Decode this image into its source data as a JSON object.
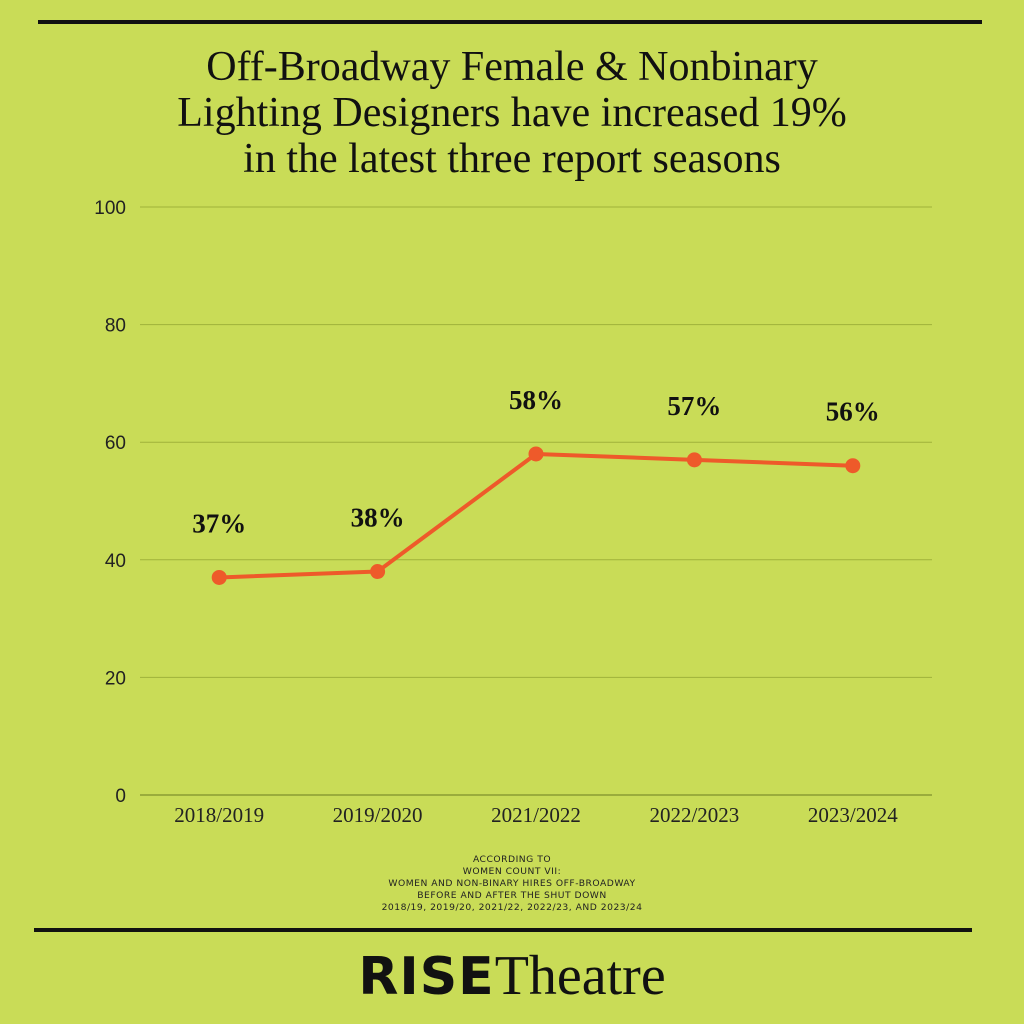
{
  "title_lines": [
    "Off-Broadway Female & Nonbinary",
    "Lighting Designers have increased 19%",
    "in the latest three report seasons"
  ],
  "chart_data": {
    "type": "line",
    "categories": [
      "2018/2019",
      "2019/2020",
      "2021/2022",
      "2022/2023",
      "2023/2024"
    ],
    "values": [
      37,
      38,
      58,
      57,
      56
    ],
    "data_labels": [
      "37%",
      "38%",
      "58%",
      "57%",
      "56%"
    ],
    "ylim": [
      0,
      100
    ],
    "yticks": [
      0,
      20,
      40,
      60,
      80,
      100
    ],
    "grid": true,
    "line_color": "#ee5a2a"
  },
  "footnote_lines": [
    "ACCORDING TO",
    "WOMEN COUNT VII:",
    "WOMEN AND NON-BINARY HIRES OFF-BROADWAY",
    "BEFORE AND AFTER THE SHUT DOWN",
    "2018/19, 2019/20, 2021/22, 2022/23, AND 2023/24"
  ],
  "brand": {
    "bold": "RISE",
    "regular": "Theatre"
  },
  "colors": {
    "background": "#c9dc57",
    "line": "#ee5a2a",
    "text": "#111111"
  }
}
